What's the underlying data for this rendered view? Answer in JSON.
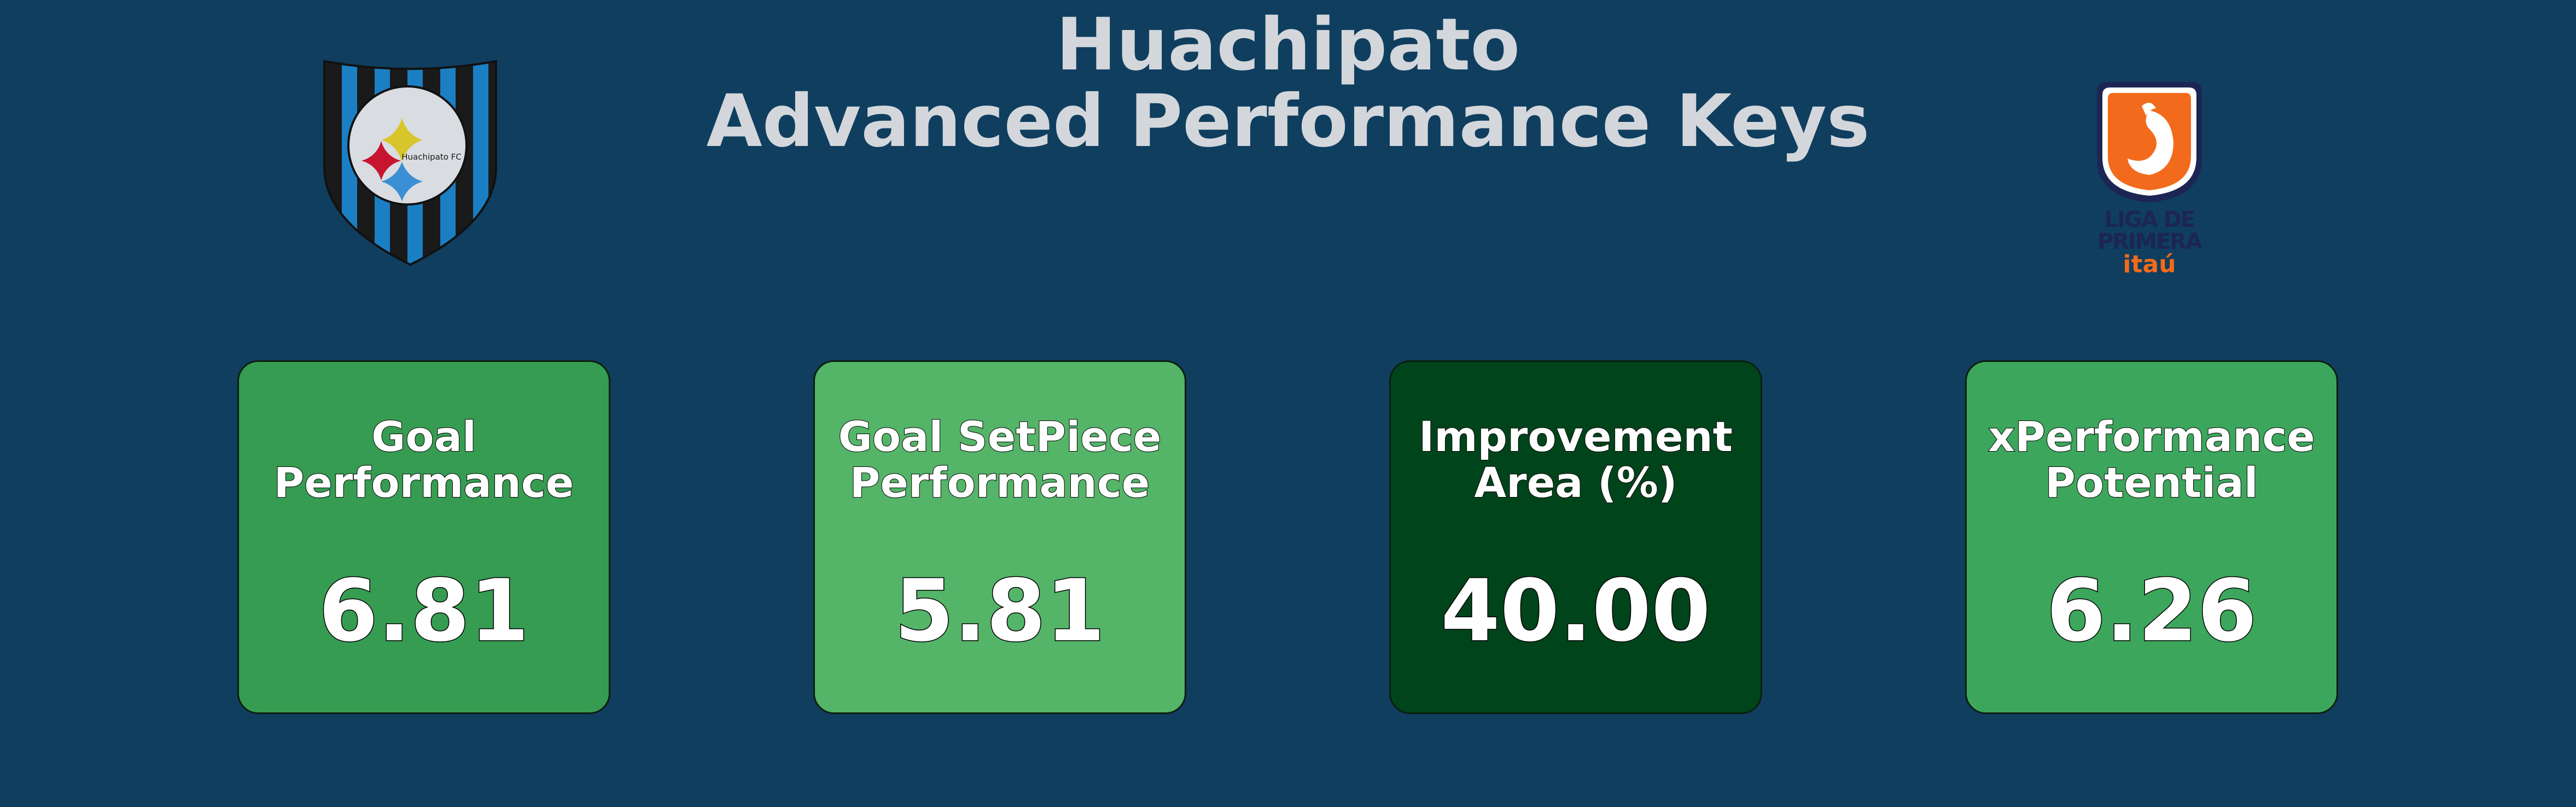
{
  "header": {
    "title_line1": "Huachipato",
    "title_line2": "Advanced Performance Keys"
  },
  "logos": {
    "club": {
      "icon": "huachipato-crest-icon",
      "text": "Huachipato FC"
    },
    "league": {
      "icon": "liga-de-primera-logo-icon",
      "line1": "LIGA DE",
      "line2": "PRIMERA",
      "line3": "itaú"
    }
  },
  "colors": {
    "background": "#0f3e5f",
    "title": "#d3d7db",
    "league_orange": "#f26a1b",
    "league_navy": "#1c2553"
  },
  "cards": [
    {
      "label": "Goal\nPerformance",
      "value": "6.81",
      "color": "#369c52"
    },
    {
      "label": "Goal SetPiece\nPerformance",
      "value": "5.81",
      "color": "#54b468"
    },
    {
      "label": "Improvement\nArea (%)",
      "value": "40.00",
      "color": "#00441b"
    },
    {
      "label": "xPerformance\nPotential",
      "value": "6.26",
      "color": "#3ca75c"
    }
  ]
}
